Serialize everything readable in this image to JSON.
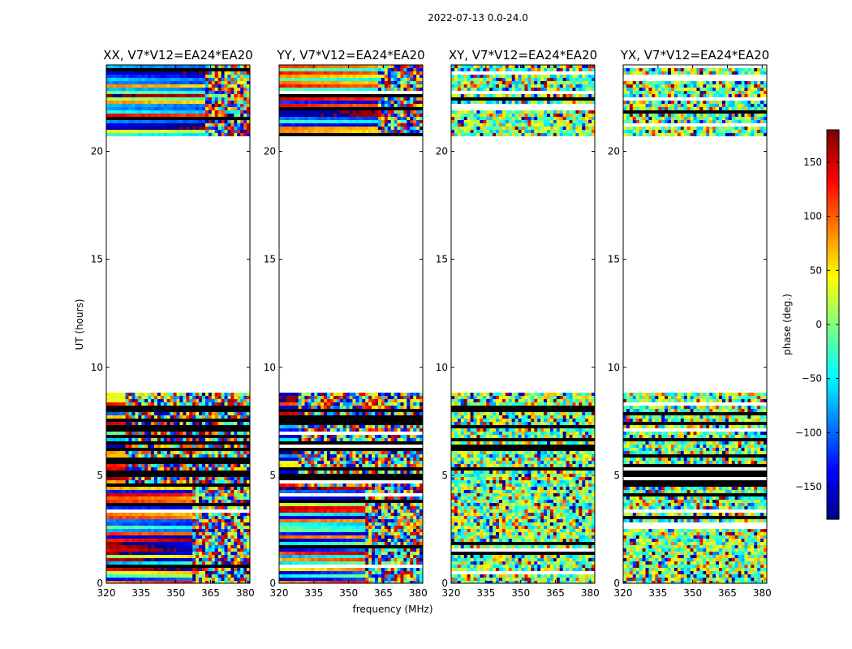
{
  "chart_data": {
    "type": "heatmap",
    "title": "2022-07-13 0.0-24.0",
    "xlabel": "frequency (MHz)",
    "ylabel": "UT (hours)",
    "xlim": [
      320,
      382
    ],
    "ylim": [
      0,
      24
    ],
    "x_ticks": [
      320,
      335,
      350,
      365,
      380
    ],
    "y_ticks": [
      0,
      5,
      10,
      15,
      20
    ],
    "colorbar": {
      "label": "phase (deg.)",
      "range": [
        -180,
        180
      ],
      "ticks": [
        150,
        100,
        50,
        0,
        -50,
        -100,
        -150
      ],
      "tick_labels": [
        "150",
        "100",
        "50",
        "0",
        "−50",
        "−100",
        "−150"
      ],
      "colormap": "jet"
    },
    "data_gaps": [
      [
        8.8,
        20.7
      ]
    ],
    "panels": [
      {
        "title": "XX, V7*V12=EA24*EA20",
        "pol": "XX"
      },
      {
        "title": "YY, V7*V12=EA24*EA20",
        "pol": "YY"
      },
      {
        "title": "XY, V7*V12=EA24*EA20",
        "pol": "XY"
      },
      {
        "title": "YX, V7*V12=EA24*EA20",
        "pol": "YX"
      }
    ]
  }
}
